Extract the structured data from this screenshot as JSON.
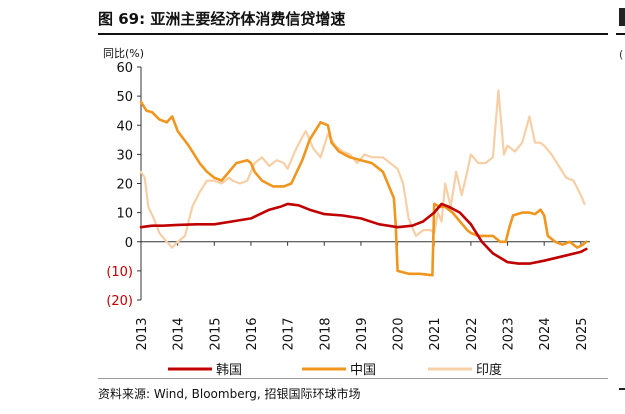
{
  "figure": {
    "title": "图 69: 亚洲主要经济体消费信贷增速",
    "source": "资料来源: Wind, Bloomberg, 招银国际环球市场"
  },
  "side_panel": {
    "paren": "("
  },
  "chart_data": {
    "type": "line",
    "ylabel": "同比(%)",
    "ylim": [
      -20,
      60
    ],
    "yticks": [
      60,
      50,
      40,
      30,
      20,
      10,
      0,
      -10,
      -20
    ],
    "ytick_labels": [
      "60",
      "50",
      "40",
      "30",
      "20",
      "10",
      "0",
      "(10)",
      "(20)"
    ],
    "xlim": [
      2013.0,
      2025.25
    ],
    "xticks": [
      "2013",
      "2014",
      "2015",
      "2016",
      "2017",
      "2018",
      "2019",
      "2020",
      "2021",
      "2022",
      "2023",
      "2024",
      "2025"
    ],
    "grid": false,
    "legend_position": "bottom",
    "series": [
      {
        "name": "韩国",
        "color": "#c00000",
        "points": [
          [
            2013.0,
            5
          ],
          [
            2013.3,
            5.5
          ],
          [
            2013.6,
            5.5
          ],
          [
            2014.0,
            5.8
          ],
          [
            2014.5,
            6
          ],
          [
            2015.0,
            6
          ],
          [
            2015.5,
            7
          ],
          [
            2016.0,
            8
          ],
          [
            2016.5,
            11
          ],
          [
            2016.8,
            12
          ],
          [
            2017.0,
            13
          ],
          [
            2017.3,
            12.5
          ],
          [
            2017.6,
            11
          ],
          [
            2018.0,
            9.5
          ],
          [
            2018.5,
            9
          ],
          [
            2019.0,
            8
          ],
          [
            2019.5,
            6
          ],
          [
            2020.0,
            5
          ],
          [
            2020.4,
            5.5
          ],
          [
            2020.7,
            7
          ],
          [
            2021.0,
            10
          ],
          [
            2021.2,
            13
          ],
          [
            2021.4,
            12
          ],
          [
            2021.7,
            10
          ],
          [
            2022.0,
            6
          ],
          [
            2022.3,
            0
          ],
          [
            2022.6,
            -4
          ],
          [
            2023.0,
            -7
          ],
          [
            2023.3,
            -7.5
          ],
          [
            2023.6,
            -7.5
          ],
          [
            2024.0,
            -6.5
          ],
          [
            2024.5,
            -5
          ],
          [
            2025.0,
            -3.5
          ],
          [
            2025.15,
            -2.5
          ]
        ]
      },
      {
        "name": "中国",
        "color": "#f0961e",
        "points": [
          [
            2013.0,
            48
          ],
          [
            2013.15,
            45
          ],
          [
            2013.3,
            44.5
          ],
          [
            2013.5,
            42
          ],
          [
            2013.7,
            41
          ],
          [
            2013.85,
            43
          ],
          [
            2014.0,
            38
          ],
          [
            2014.3,
            33
          ],
          [
            2014.6,
            27
          ],
          [
            2014.8,
            24
          ],
          [
            2015.0,
            22
          ],
          [
            2015.2,
            21
          ],
          [
            2015.4,
            24
          ],
          [
            2015.6,
            27
          ],
          [
            2015.9,
            28
          ],
          [
            2016.0,
            27
          ],
          [
            2016.1,
            24
          ],
          [
            2016.3,
            21
          ],
          [
            2016.6,
            19
          ],
          [
            2016.9,
            19
          ],
          [
            2017.1,
            20
          ],
          [
            2017.4,
            28
          ],
          [
            2017.6,
            35
          ],
          [
            2017.9,
            41
          ],
          [
            2018.1,
            40
          ],
          [
            2018.2,
            34
          ],
          [
            2018.4,
            31
          ],
          [
            2018.7,
            29
          ],
          [
            2019.0,
            28
          ],
          [
            2019.3,
            27
          ],
          [
            2019.6,
            24
          ],
          [
            2019.9,
            15
          ],
          [
            2019.95,
            6
          ],
          [
            2020.0,
            -10
          ],
          [
            2020.3,
            -11
          ],
          [
            2020.6,
            -11
          ],
          [
            2020.95,
            -11.5
          ],
          [
            2021.0,
            13
          ],
          [
            2021.15,
            12
          ],
          [
            2021.3,
            12
          ],
          [
            2021.5,
            10
          ],
          [
            2021.7,
            7
          ],
          [
            2021.9,
            4
          ],
          [
            2022.0,
            3
          ],
          [
            2022.2,
            2
          ],
          [
            2022.4,
            2
          ],
          [
            2022.6,
            2
          ],
          [
            2022.8,
            0
          ],
          [
            2022.95,
            0
          ],
          [
            2023.05,
            5
          ],
          [
            2023.15,
            9
          ],
          [
            2023.4,
            10
          ],
          [
            2023.6,
            10
          ],
          [
            2023.75,
            9.5
          ],
          [
            2023.9,
            11
          ],
          [
            2024.0,
            9
          ],
          [
            2024.1,
            2
          ],
          [
            2024.3,
            0
          ],
          [
            2024.5,
            -1
          ],
          [
            2024.7,
            0
          ],
          [
            2024.9,
            -2
          ],
          [
            2025.05,
            -1
          ],
          [
            2025.15,
            0
          ]
        ]
      },
      {
        "name": "印度",
        "color": "#f7cfa6",
        "points": [
          [
            2013.0,
            24
          ],
          [
            2013.1,
            22
          ],
          [
            2013.2,
            12
          ],
          [
            2013.35,
            8
          ],
          [
            2013.5,
            3
          ],
          [
            2013.7,
            0
          ],
          [
            2013.85,
            -2
          ],
          [
            2014.0,
            0
          ],
          [
            2014.2,
            2
          ],
          [
            2014.4,
            12
          ],
          [
            2014.6,
            17
          ],
          [
            2014.8,
            21
          ],
          [
            2015.0,
            21
          ],
          [
            2015.2,
            20
          ],
          [
            2015.4,
            22
          ],
          [
            2015.5,
            21
          ],
          [
            2015.7,
            20
          ],
          [
            2015.9,
            21
          ],
          [
            2016.1,
            27
          ],
          [
            2016.3,
            29
          ],
          [
            2016.5,
            26
          ],
          [
            2016.7,
            28
          ],
          [
            2016.9,
            27
          ],
          [
            2017.0,
            25
          ],
          [
            2017.2,
            31
          ],
          [
            2017.4,
            36
          ],
          [
            2017.5,
            38
          ],
          [
            2017.7,
            32
          ],
          [
            2017.9,
            29
          ],
          [
            2018.1,
            37
          ],
          [
            2018.3,
            33
          ],
          [
            2018.5,
            31
          ],
          [
            2018.7,
            30
          ],
          [
            2018.9,
            27
          ],
          [
            2019.1,
            30
          ],
          [
            2019.3,
            29
          ],
          [
            2019.6,
            29
          ],
          [
            2019.8,
            27
          ],
          [
            2020.0,
            25
          ],
          [
            2020.15,
            20
          ],
          [
            2020.3,
            8
          ],
          [
            2020.5,
            2
          ],
          [
            2020.7,
            4
          ],
          [
            2020.9,
            4
          ],
          [
            2021.0,
            3
          ],
          [
            2021.1,
            10
          ],
          [
            2021.2,
            7
          ],
          [
            2021.3,
            20
          ],
          [
            2021.45,
            12
          ],
          [
            2021.6,
            24
          ],
          [
            2021.75,
            16
          ],
          [
            2021.9,
            24
          ],
          [
            2022.0,
            30
          ],
          [
            2022.2,
            27
          ],
          [
            2022.4,
            27
          ],
          [
            2022.6,
            29
          ],
          [
            2022.75,
            52
          ],
          [
            2022.9,
            30
          ],
          [
            2023.0,
            33
          ],
          [
            2023.2,
            31
          ],
          [
            2023.4,
            34
          ],
          [
            2023.6,
            43
          ],
          [
            2023.75,
            34
          ],
          [
            2023.9,
            34
          ],
          [
            2024.0,
            33
          ],
          [
            2024.2,
            30
          ],
          [
            2024.4,
            26
          ],
          [
            2024.6,
            22
          ],
          [
            2024.8,
            21
          ],
          [
            2025.0,
            16
          ],
          [
            2025.1,
            13
          ]
        ]
      }
    ]
  }
}
